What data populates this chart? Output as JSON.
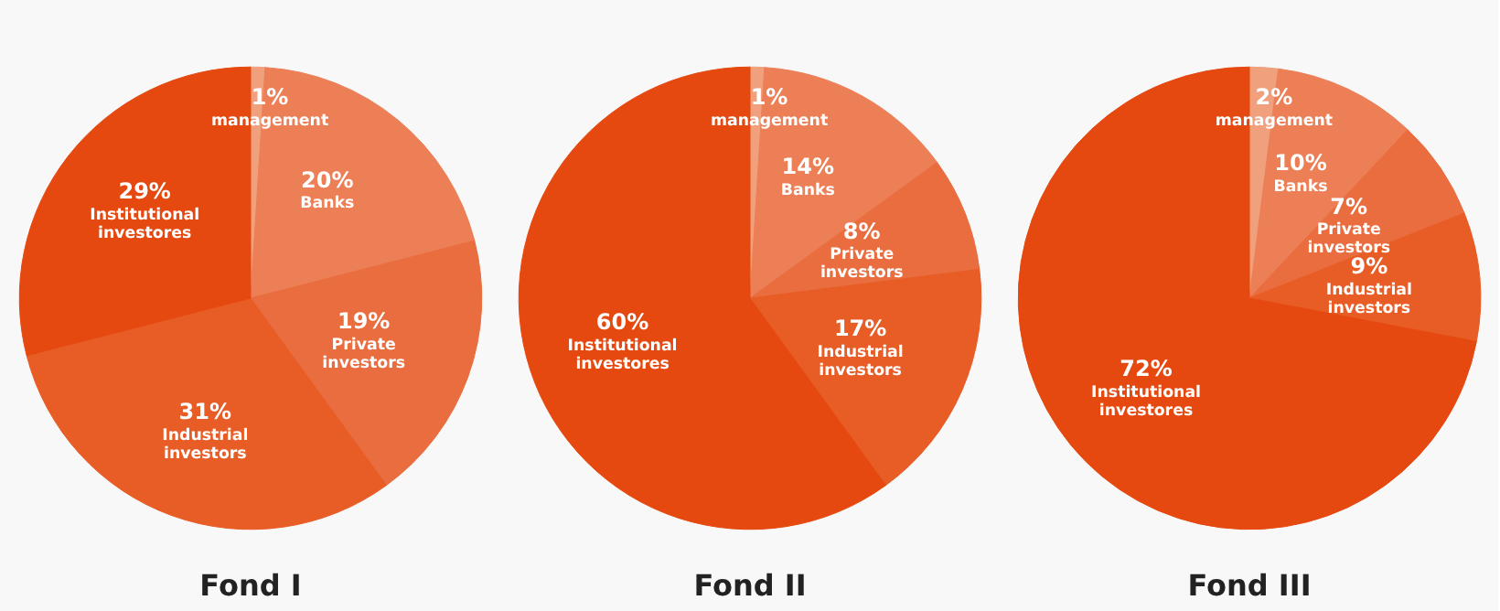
{
  "chart_data": [
    {
      "type": "pie",
      "title": "Fond I",
      "categories": [
        "management",
        "Banks",
        "Private investors",
        "Industrial investors",
        "Institutional investores"
      ],
      "values": [
        1,
        20,
        19,
        31,
        29
      ],
      "value_labels": [
        "1%",
        "20%",
        "19%",
        "31%",
        "29%"
      ],
      "colors": [
        "#f0a07c",
        "#ec7f56",
        "#e96d3e",
        "#e85c26",
        "#e5490f"
      ]
    },
    {
      "type": "pie",
      "title": "Fond II",
      "categories": [
        "management",
        "Banks",
        "Private investors",
        "Industrial investors",
        "Institutional investores"
      ],
      "values": [
        1,
        14,
        8,
        17,
        60
      ],
      "value_labels": [
        "1%",
        "14%",
        "8%",
        "17%",
        "60%"
      ],
      "colors": [
        "#f0a07c",
        "#ec7f56",
        "#e96d3e",
        "#e85c26",
        "#e5490f"
      ]
    },
    {
      "type": "pie",
      "title": "Fond III",
      "categories": [
        "management",
        "Banks",
        "Private investors",
        "Industrial investors",
        "Institutional investores"
      ],
      "values": [
        2,
        10,
        7,
        9,
        72
      ],
      "value_labels": [
        "2%",
        "10%",
        "7%",
        "9%",
        "72%"
      ],
      "colors": [
        "#f0a07c",
        "#ec7f56",
        "#e96d3e",
        "#e85c26",
        "#e5490f"
      ]
    }
  ]
}
